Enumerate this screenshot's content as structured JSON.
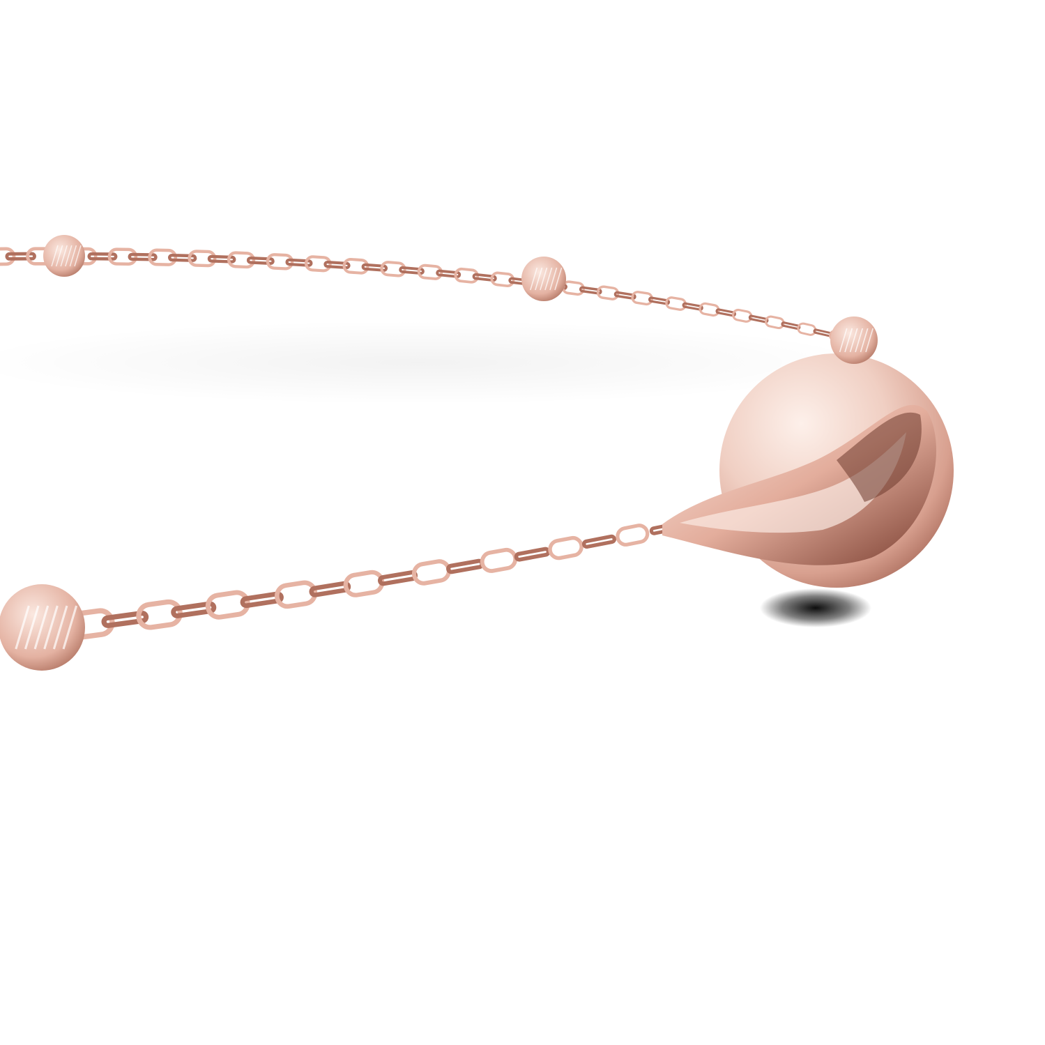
{
  "image": {
    "subject": "rose-gold-bracelet",
    "colors": {
      "background": "#ffffff",
      "metal_light": "#f6dcd2",
      "metal_mid": "#e6b3a3",
      "metal_dark": "#b0705e",
      "metal_deep": "#6e3a2e",
      "shadow": "#111111"
    }
  }
}
